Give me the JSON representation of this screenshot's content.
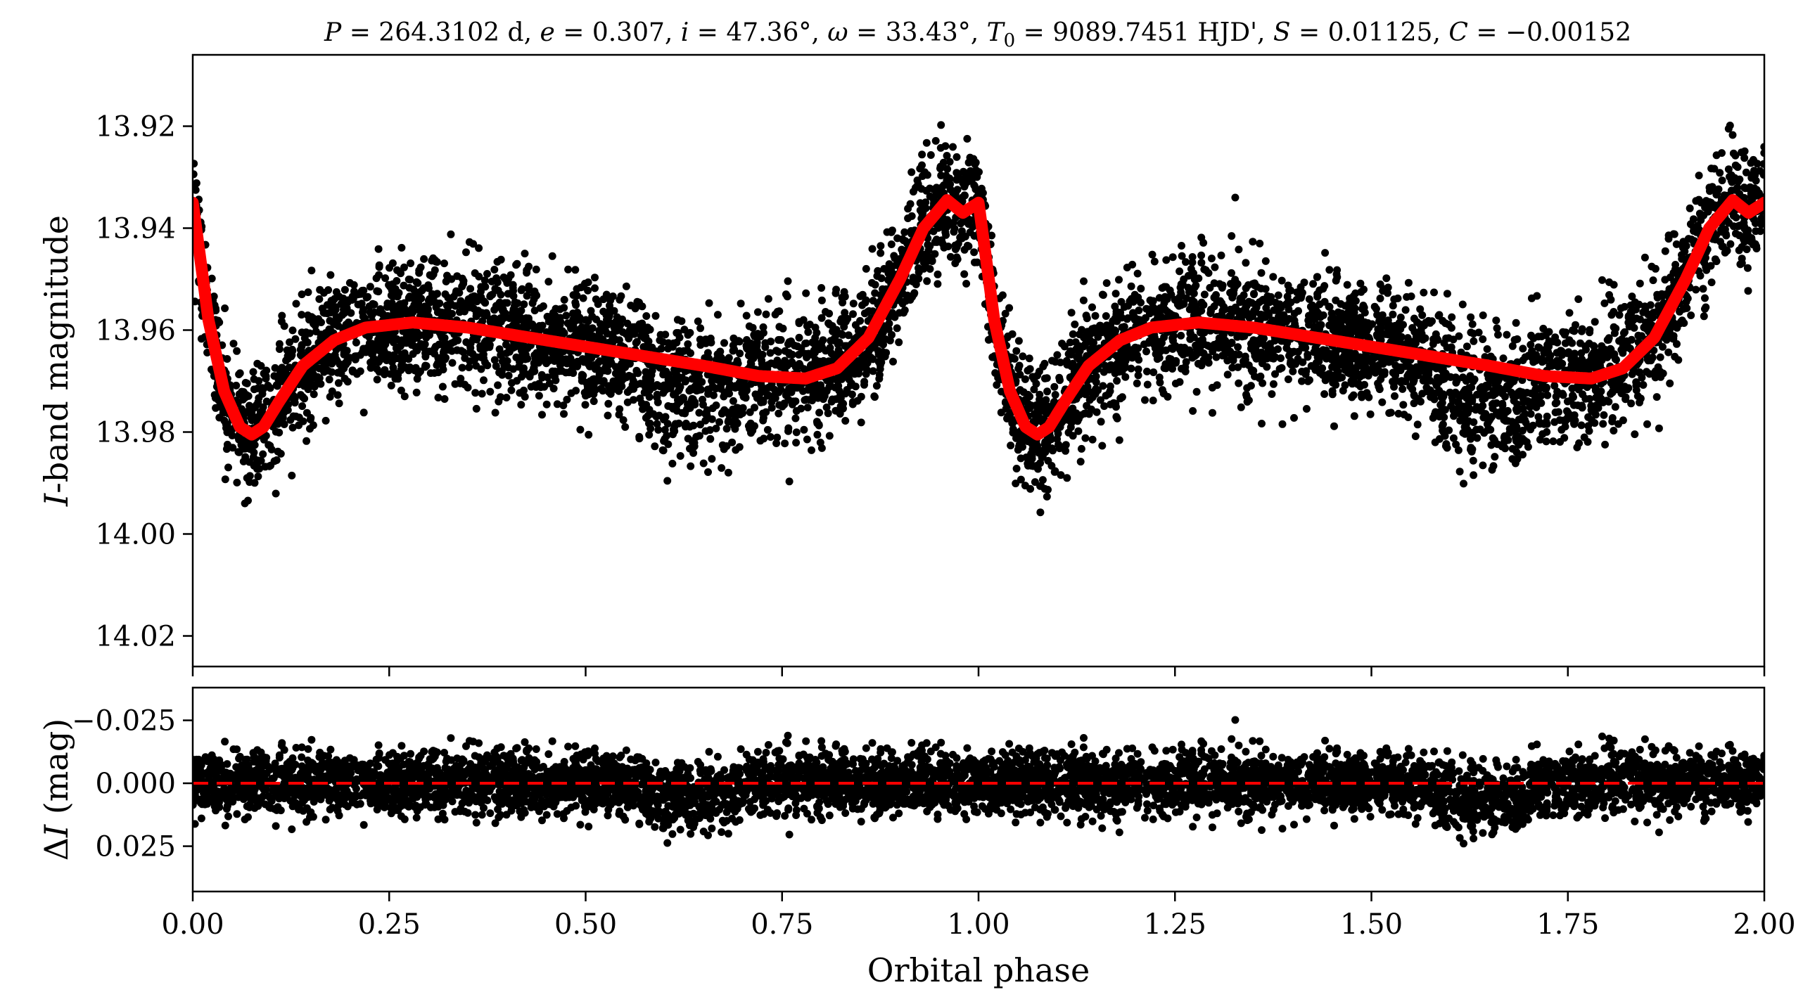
{
  "title": {
    "prefix_italic": "P",
    "eq1": " = 264.3102 d, ",
    "e_italic": "e",
    "eq2": " = 0.307, ",
    "i_italic": "i",
    "eq3": " = 47.36°, ",
    "w_italic": "ω",
    "eq4": " = 33.43°, ",
    "t_italic": "T",
    "t_sub": "0",
    "eq5": " = 9089.7451 HJD', ",
    "s_italic": "S",
    "eq6": " = 0.01125, ",
    "c_italic": "C",
    "eq7": " = −0.00152"
  },
  "chart_data": [
    {
      "type": "scatter",
      "panel": "light-curve",
      "ylabel_italic": "I",
      "ylabel_rest": "-band magnitude",
      "xlim": [
        0.0,
        2.0
      ],
      "ylim": [
        14.026,
        13.906
      ],
      "y_inverted": true,
      "yticks": [
        13.92,
        13.94,
        13.96,
        13.98,
        14.0,
        14.02
      ],
      "ytick_labels": [
        "13.92",
        "13.94",
        "13.96",
        "13.98",
        "14.00",
        "14.02"
      ],
      "series": [
        {
          "kind": "points",
          "color": "#000000",
          "approx_count": 6000,
          "scatter_sigma_mag": 0.006
        },
        {
          "kind": "model-curve",
          "color": "#ff0000",
          "x": [
            0.0,
            0.02,
            0.04,
            0.06,
            0.075,
            0.09,
            0.11,
            0.14,
            0.18,
            0.22,
            0.28,
            0.35,
            0.45,
            0.55,
            0.65,
            0.72,
            0.78,
            0.82,
            0.86,
            0.9,
            0.93,
            0.96,
            0.98,
            1.0,
            1.02,
            1.04,
            1.06,
            1.075,
            1.09,
            1.11,
            1.14,
            1.18,
            1.22,
            1.28,
            1.35,
            1.45,
            1.55,
            1.65,
            1.72,
            1.78,
            1.82,
            1.86,
            1.9,
            1.93,
            1.96,
            1.98,
            2.0
          ],
          "y": [
            13.935,
            13.958,
            13.972,
            13.979,
            13.9805,
            13.979,
            13.974,
            13.967,
            13.962,
            13.9595,
            13.9585,
            13.9595,
            13.962,
            13.9645,
            13.967,
            13.969,
            13.9695,
            13.9675,
            13.9615,
            13.95,
            13.94,
            13.9345,
            13.937,
            13.935,
            13.958,
            13.972,
            13.979,
            13.9805,
            13.979,
            13.974,
            13.967,
            13.962,
            13.9595,
            13.9585,
            13.9595,
            13.962,
            13.9645,
            13.967,
            13.969,
            13.9695,
            13.9675,
            13.9615,
            13.95,
            13.94,
            13.9345,
            13.937,
            13.935
          ]
        }
      ]
    },
    {
      "type": "scatter",
      "panel": "residuals",
      "ylabel_prefix": "Δ",
      "ylabel_italic": "I",
      "ylabel_rest": " (mag)",
      "xlabel": "Orbital phase",
      "xlim": [
        0.0,
        2.0
      ],
      "ylim": [
        0.043,
        -0.038
      ],
      "y_inverted": true,
      "xticks": [
        0.0,
        0.25,
        0.5,
        0.75,
        1.0,
        1.25,
        1.5,
        1.75,
        2.0
      ],
      "xtick_labels": [
        "0.00",
        "0.25",
        "0.50",
        "0.75",
        "1.00",
        "1.25",
        "1.50",
        "1.75",
        "2.00"
      ],
      "yticks": [
        -0.025,
        0.0,
        0.025
      ],
      "ytick_labels": [
        "−0.025",
        "0.000",
        "0.025"
      ],
      "series": [
        {
          "kind": "points",
          "color": "#000000",
          "approx_count": 6000,
          "scatter_sigma_mag": 0.006
        },
        {
          "kind": "reference-line",
          "y": 0.0,
          "style": "dashed",
          "color": "#ff0000"
        }
      ]
    }
  ]
}
